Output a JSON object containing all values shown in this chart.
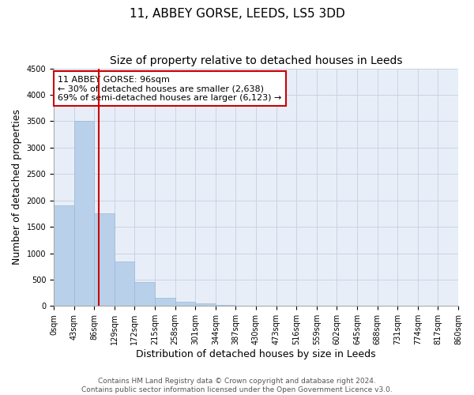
{
  "title": "11, ABBEY GORSE, LEEDS, LS5 3DD",
  "subtitle": "Size of property relative to detached houses in Leeds",
  "xlabel": "Distribution of detached houses by size in Leeds",
  "ylabel": "Number of detached properties",
  "bin_edges": [
    0,
    43,
    86,
    129,
    172,
    215,
    258,
    301,
    344,
    387,
    430,
    473,
    516,
    559,
    602,
    645,
    688,
    731,
    774,
    817,
    860
  ],
  "bar_heights": [
    1900,
    3500,
    1750,
    850,
    450,
    150,
    75,
    50,
    25,
    10,
    5,
    2,
    0,
    0,
    0,
    0,
    0,
    0,
    0,
    0
  ],
  "bar_color": "#b8d0ea",
  "bar_edge_color": "#9ab8d8",
  "grid_color": "#c8d4e4",
  "background_color": "#e8eef8",
  "vline_x": 96,
  "vline_color": "#cc0000",
  "ylim": [
    0,
    4500
  ],
  "yticks": [
    0,
    500,
    1000,
    1500,
    2000,
    2500,
    3000,
    3500,
    4000,
    4500
  ],
  "annotation_title": "11 ABBEY GORSE: 96sqm",
  "annotation_line1": "← 30% of detached houses are smaller (2,638)",
  "annotation_line2": "69% of semi-detached houses are larger (6,123) →",
  "annotation_box_color": "#ffffff",
  "annotation_box_edge_color": "#cc0000",
  "footer_line1": "Contains HM Land Registry data © Crown copyright and database right 2024.",
  "footer_line2": "Contains public sector information licensed under the Open Government Licence v3.0.",
  "title_fontsize": 11,
  "subtitle_fontsize": 10,
  "axis_label_fontsize": 9,
  "tick_label_fontsize": 7,
  "annotation_fontsize": 8,
  "footer_fontsize": 6.5
}
